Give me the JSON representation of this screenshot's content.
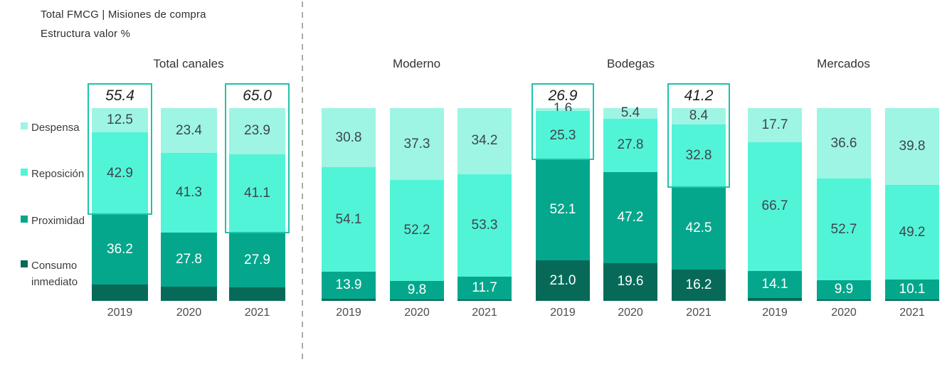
{
  "header": {
    "title": "Total FMCG | Misiones de compra",
    "subtitle": "Estructura valor %"
  },
  "legend": {
    "items": [
      {
        "key": "despensa",
        "label": "Despensa"
      },
      {
        "key": "reposicion",
        "label": "Reposición"
      },
      {
        "key": "proximidad",
        "label": "Proximidad"
      },
      {
        "key": "consumo_inmediato",
        "label": "Consumo inmediato"
      }
    ]
  },
  "colors": {
    "despensa": "#9EF5E3",
    "reposicion": "#52F4D7",
    "proximidad": "#04A78C",
    "consumo_inmediato": "#076A58",
    "callout_border": "#1FC3A9",
    "label_dark": "#3C464E",
    "label_light": "#FFFFFF",
    "separator": "#A9ADA3"
  },
  "chart_data": {
    "type": "bar",
    "variant": "100%-stacked-column",
    "unit": "%",
    "title": "Total FMCG | Misiones de compra",
    "subtitle": "Estructura valor %",
    "categories": [
      "2019",
      "2020",
      "2021"
    ],
    "stack_order_bottom_to_top": [
      "consumo_inmediato",
      "proximidad",
      "reposicion",
      "despensa"
    ],
    "series_labels": {
      "despensa": "Despensa",
      "reposicion": "Reposición",
      "proximidad": "Proximidad",
      "consumo_inmediato": "Consumo inmediato"
    },
    "value_axis_visible": false,
    "callout_meaning": "suma Despensa + Reposición",
    "groups": [
      {
        "title": "Total canales",
        "show_consumo_label": false,
        "consumo_inmediato_estimated": true,
        "bars": [
          {
            "year": "2019",
            "despensa": 12.5,
            "reposicion": 42.9,
            "proximidad": 36.2,
            "consumo_inmediato": 8.4,
            "callout": "55.4"
          },
          {
            "year": "2020",
            "despensa": 23.4,
            "reposicion": 41.3,
            "proximidad": 27.8,
            "consumo_inmediato": 7.5,
            "callout": null
          },
          {
            "year": "2021",
            "despensa": 23.9,
            "reposicion": 41.1,
            "proximidad": 27.9,
            "consumo_inmediato": 7.1,
            "callout": "65.0"
          }
        ]
      },
      {
        "title": "Moderno",
        "show_consumo_label": false,
        "consumo_inmediato_estimated": true,
        "bars": [
          {
            "year": "2019",
            "despensa": 30.8,
            "reposicion": 54.1,
            "proximidad": 13.9,
            "consumo_inmediato": 1.2,
            "callout": null
          },
          {
            "year": "2020",
            "despensa": 37.3,
            "reposicion": 52.2,
            "proximidad": 9.8,
            "consumo_inmediato": 0.7,
            "callout": null
          },
          {
            "year": "2021",
            "despensa": 34.2,
            "reposicion": 53.3,
            "proximidad": 11.7,
            "consumo_inmediato": 0.8,
            "callout": null
          }
        ]
      },
      {
        "title": "Bodegas",
        "show_consumo_label": true,
        "consumo_inmediato_estimated": false,
        "bars": [
          {
            "year": "2019",
            "despensa": 1.6,
            "reposicion": 25.3,
            "proximidad": 52.1,
            "consumo_inmediato": 21.0,
            "callout": "26.9"
          },
          {
            "year": "2020",
            "despensa": 5.4,
            "reposicion": 27.8,
            "proximidad": 47.2,
            "consumo_inmediato": 19.6,
            "callout": null
          },
          {
            "year": "2021",
            "despensa": 8.4,
            "reposicion": 32.8,
            "proximidad": 42.5,
            "consumo_inmediato": 16.2,
            "callout": "41.2"
          }
        ]
      },
      {
        "title": "Mercados",
        "show_consumo_label": false,
        "consumo_inmediato_estimated": true,
        "bars": [
          {
            "year": "2019",
            "despensa": 17.7,
            "reposicion": 66.7,
            "proximidad": 14.1,
            "consumo_inmediato": 1.5,
            "callout": null
          },
          {
            "year": "2020",
            "despensa": 36.6,
            "reposicion": 52.7,
            "proximidad": 9.9,
            "consumo_inmediato": 0.8,
            "callout": null
          },
          {
            "year": "2021",
            "despensa": 39.8,
            "reposicion": 49.2,
            "proximidad": 10.1,
            "consumo_inmediato": 0.9,
            "callout": null
          }
        ]
      }
    ]
  }
}
